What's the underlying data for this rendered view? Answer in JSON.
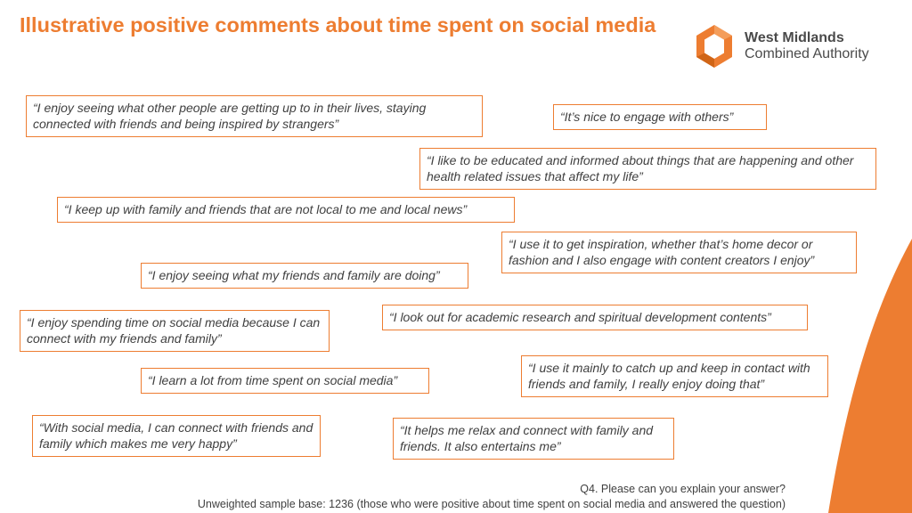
{
  "title": "Illustrative positive comments about time spent on social media",
  "logo": {
    "line1": "West Midlands",
    "line2": "Combined Authority"
  },
  "colors": {
    "accent": "#ED7D31",
    "text": "#404040"
  },
  "quotes": [
    "“I enjoy seeing what other people are getting up to in their lives, staying connected with friends and being inspired by strangers”",
    "“It’s nice to engage with others”",
    "“I like to be educated and informed about things that are happening and other health related issues that affect my life”",
    "“I keep up with family and friends that are not local to me and local news”",
    "“I use it to get inspiration, whether that’s home decor or fashion and I also engage with content creators I enjoy”",
    "“I enjoy seeing what my friends and family are doing”",
    "“I look out for academic research and spiritual development contents”",
    "“I enjoy spending time on social media because I can connect with my friends and family”",
    "“I use it mainly to catch up and keep in contact with friends and family, I really enjoy doing that”",
    "“I learn a lot from time spent on social media”",
    "“With social media, I can connect with friends and family which makes me very happy”",
    "“It helps me relax and connect with family and friends. It also entertains me”"
  ],
  "footer": {
    "question": "Q4. Please can you explain your answer?",
    "base": "Unweighted sample base: 1236 (those who were positive about time spent on social media and answered the question)"
  }
}
